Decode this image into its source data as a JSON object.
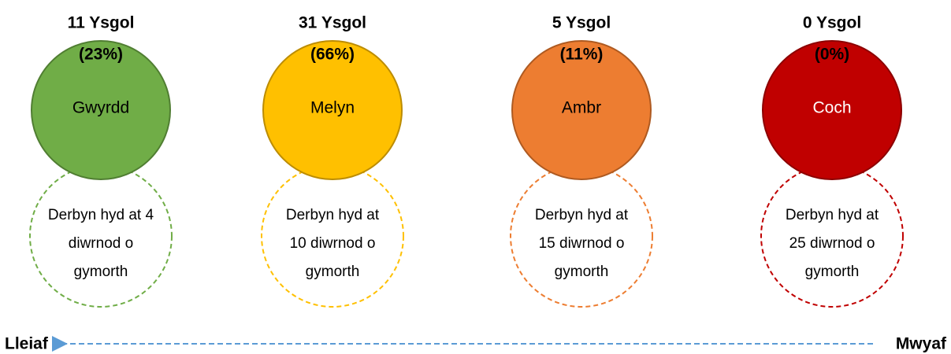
{
  "items": [
    {
      "heading": [
        "11 Ysgol",
        "(23%)"
      ],
      "label": "Gwyrdd",
      "description": [
        "Derbyn hyd at 4",
        "diwrnod o",
        "gymorth"
      ],
      "fill": "#70ad47",
      "stroke": "#507e32",
      "text_color": "#000000"
    },
    {
      "heading": [
        "31 Ysgol",
        "(66%)"
      ],
      "label": "Melyn",
      "description": [
        "Derbyn hyd at",
        "10 diwrnod o",
        "gymorth"
      ],
      "fill": "#ffc000",
      "stroke": "#bc8c00",
      "text_color": "#000000"
    },
    {
      "heading": [
        "5 Ysgol",
        "(11%)"
      ],
      "label": "Ambr",
      "description": [
        "Derbyn hyd at",
        "15 diwrnod o",
        "gymorth"
      ],
      "fill": "#ed7d31",
      "stroke": "#ae5a21",
      "text_color": "#000000"
    },
    {
      "heading": [
        "0 Ysgol",
        "(0%)"
      ],
      "label": "Coch",
      "description": [
        "Derbyn hyd at",
        "25 diwrnod o",
        "gymorth"
      ],
      "fill": "#c00000",
      "stroke": "#8c0000",
      "text_color": "#ffffff"
    }
  ],
  "scale": {
    "left": "Lleiaf",
    "right": "Mwyaf",
    "color": "#5b9bd5"
  }
}
